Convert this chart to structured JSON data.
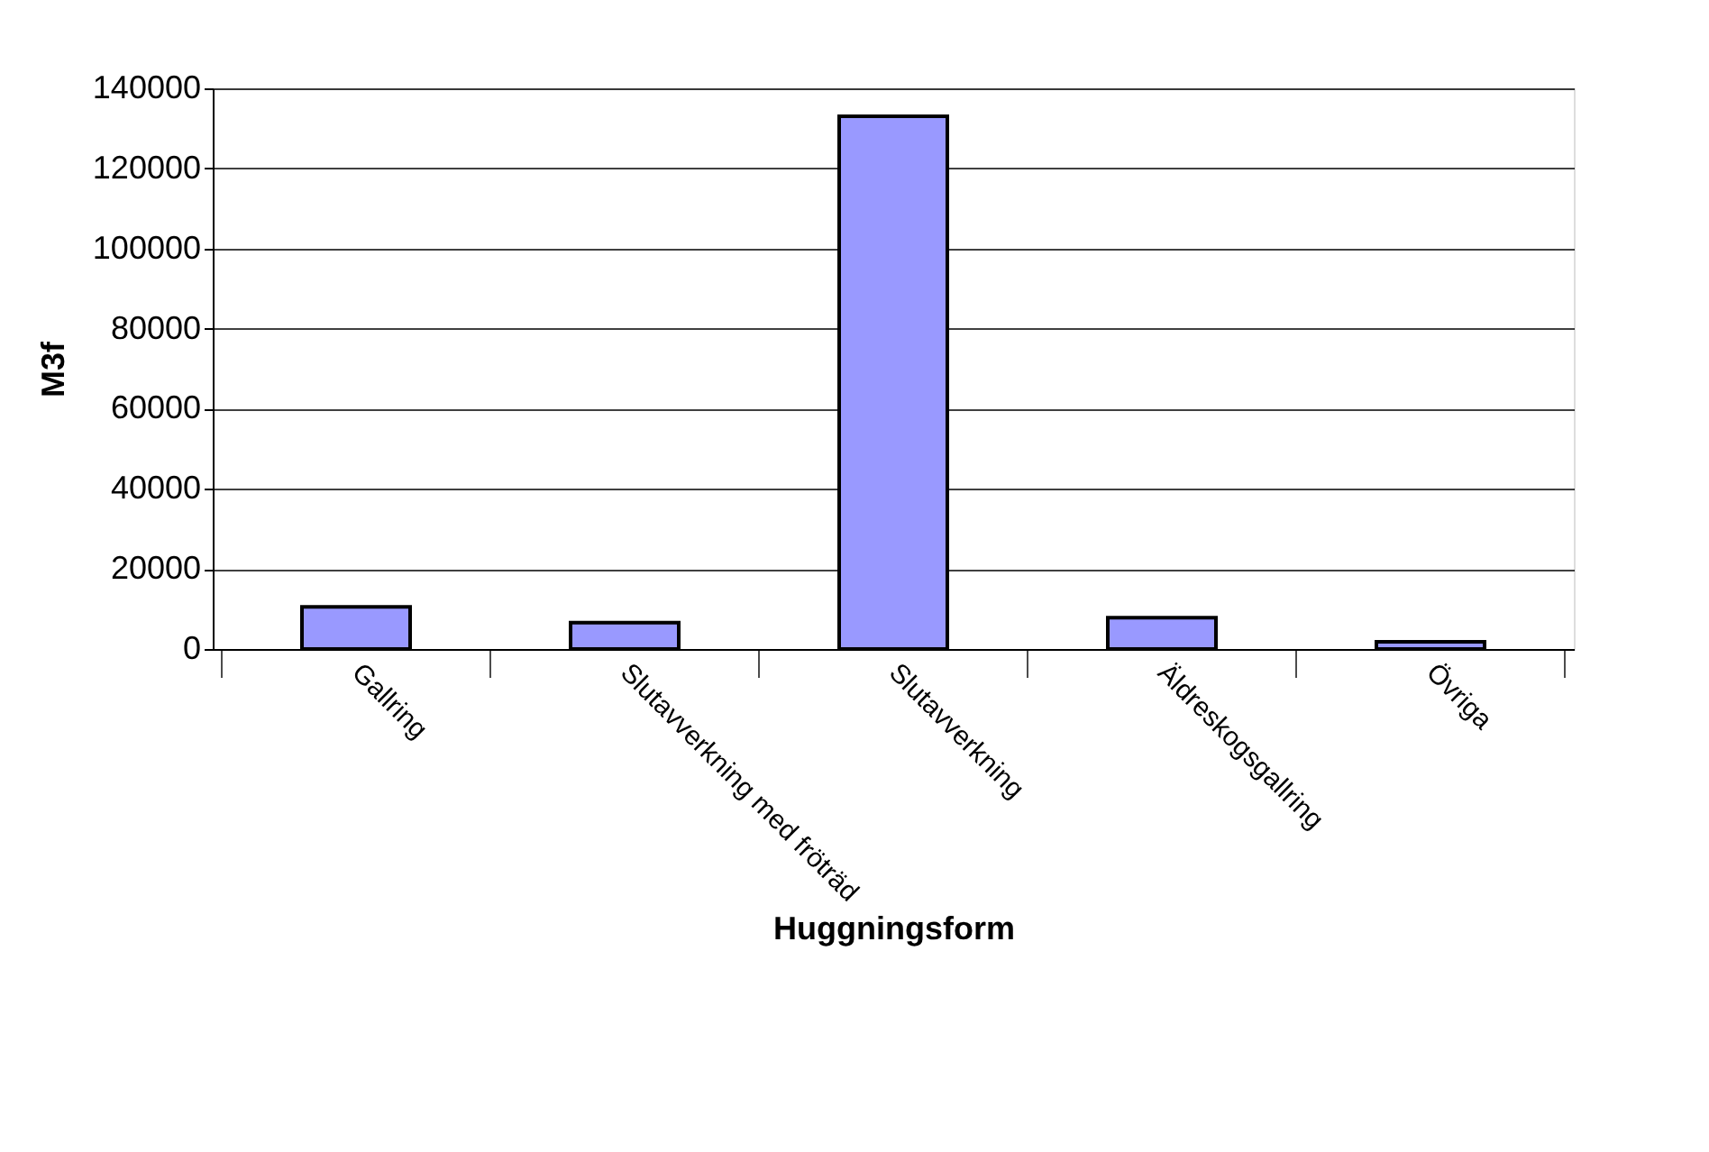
{
  "chart_data": {
    "type": "bar",
    "xlabel": "Huggningsform",
    "ylabel": "M3f",
    "categories": [
      "Gallring",
      "Slutavverkning med fröträd",
      "Slutavverkning",
      "Äldreskogsgallring",
      "Övriga"
    ],
    "values": [
      10500,
      6600,
      133000,
      7800,
      1800
    ],
    "color": "#9999ff",
    "ylim": [
      0,
      140000
    ],
    "yticks": [
      0,
      20000,
      40000,
      60000,
      80000,
      100000,
      120000,
      140000
    ],
    "grid": "y"
  }
}
